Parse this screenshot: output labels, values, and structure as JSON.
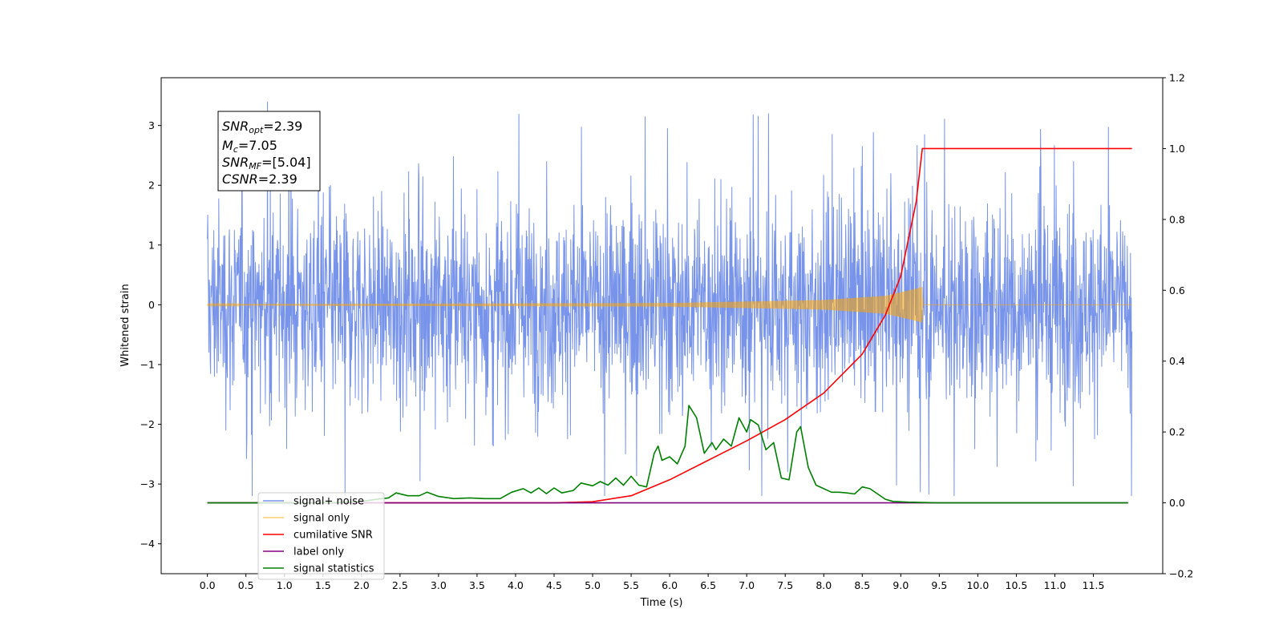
{
  "chart_data": {
    "type": "line",
    "xlabel": "Time (s)",
    "ylabel_left": "Whitened strain",
    "ylabel_right": "",
    "xlim": [
      -0.6,
      12.4
    ],
    "ylim_left": [
      -4.5,
      3.8
    ],
    "ylim_right": [
      -0.2,
      1.2
    ],
    "x_ticks": [
      "0.0",
      "0.5",
      "1.0",
      "1.5",
      "2.0",
      "2.5",
      "3.0",
      "3.5",
      "4.0",
      "4.5",
      "5.0",
      "5.5",
      "6.0",
      "6.5",
      "7.0",
      "7.5",
      "8.0",
      "8.5",
      "9.0",
      "9.5",
      "10.0",
      "10.5",
      "11.0",
      "11.5"
    ],
    "y_ticks_left": [
      "−4",
      "−3",
      "−2",
      "−1",
      "0",
      "1",
      "2",
      "3"
    ],
    "y_ticks_right": [
      "−0.2",
      "0.0",
      "0.2",
      "0.4",
      "0.6",
      "0.8",
      "1.0",
      "1.2"
    ],
    "grid": false,
    "legend_position": "lower-left",
    "info_box": {
      "lines": [
        {
          "main": "SNR",
          "sub": "opt",
          "rest": "=2.39"
        },
        {
          "main": "M",
          "sub": "c",
          "rest": "=7.05"
        },
        {
          "main": "SNR",
          "sub": "MF",
          "rest": "=[5.04]"
        },
        {
          "main": "CSNR",
          "sub": "",
          "rest": "=2.39"
        }
      ]
    },
    "series": [
      {
        "name": "signal+ noise",
        "axis": "left",
        "color": "#4a6fe3",
        "kind": "noise",
        "x_range": [
          0.0,
          12.0
        ],
        "envelope_typical": [
          -1.8,
          1.8
        ],
        "envelope_peaks": [
          -3.2,
          3.45
        ]
      },
      {
        "name": "signal only",
        "axis": "left",
        "color": "#ffa500",
        "kind": "chirp",
        "x_range": [
          0.0,
          12.0
        ],
        "merger_time": 9.28,
        "amplitude_points": [
          [
            0.0,
            0.01
          ],
          [
            6.0,
            0.03
          ],
          [
            8.0,
            0.08
          ],
          [
            8.8,
            0.15
          ],
          [
            9.2,
            0.27
          ],
          [
            9.28,
            0.3
          ],
          [
            9.29,
            0.0
          ]
        ]
      },
      {
        "name": "cumilative SNR",
        "axis": "right",
        "color": "#ff0000",
        "points": [
          [
            0.0,
            0.0
          ],
          [
            4.5,
            0.0
          ],
          [
            5.0,
            0.003
          ],
          [
            5.5,
            0.02
          ],
          [
            6.0,
            0.065
          ],
          [
            6.5,
            0.12
          ],
          [
            7.0,
            0.175
          ],
          [
            7.5,
            0.235
          ],
          [
            8.0,
            0.31
          ],
          [
            8.5,
            0.42
          ],
          [
            8.8,
            0.53
          ],
          [
            9.0,
            0.64
          ],
          [
            9.2,
            0.85
          ],
          [
            9.28,
            1.0
          ],
          [
            12.0,
            1.0
          ]
        ]
      },
      {
        "name": "label only",
        "axis": "right",
        "color": "#800080",
        "points": [
          [
            0.0,
            0.0
          ],
          [
            11.95,
            0.0
          ]
        ]
      },
      {
        "name": "signal statistics",
        "axis": "right",
        "color": "#008000",
        "points": [
          [
            0.0,
            0.0
          ],
          [
            1.2,
            0.0
          ],
          [
            1.6,
            0.0
          ],
          [
            1.8,
            0.002
          ],
          [
            2.0,
            0.004
          ],
          [
            2.2,
            0.01
          ],
          [
            2.35,
            0.014
          ],
          [
            2.45,
            0.028
          ],
          [
            2.6,
            0.02
          ],
          [
            2.75,
            0.02
          ],
          [
            2.85,
            0.03
          ],
          [
            3.0,
            0.018
          ],
          [
            3.2,
            0.012
          ],
          [
            3.4,
            0.014
          ],
          [
            3.6,
            0.012
          ],
          [
            3.8,
            0.012
          ],
          [
            3.95,
            0.03
          ],
          [
            4.1,
            0.04
          ],
          [
            4.2,
            0.028
          ],
          [
            4.3,
            0.042
          ],
          [
            4.4,
            0.026
          ],
          [
            4.5,
            0.042
          ],
          [
            4.6,
            0.028
          ],
          [
            4.75,
            0.035
          ],
          [
            4.85,
            0.056
          ],
          [
            5.0,
            0.048
          ],
          [
            5.1,
            0.06
          ],
          [
            5.2,
            0.05
          ],
          [
            5.3,
            0.07
          ],
          [
            5.4,
            0.05
          ],
          [
            5.5,
            0.075
          ],
          [
            5.6,
            0.05
          ],
          [
            5.7,
            0.045
          ],
          [
            5.8,
            0.14
          ],
          [
            5.85,
            0.16
          ],
          [
            5.9,
            0.12
          ],
          [
            6.0,
            0.13
          ],
          [
            6.1,
            0.11
          ],
          [
            6.2,
            0.16
          ],
          [
            6.25,
            0.275
          ],
          [
            6.35,
            0.24
          ],
          [
            6.45,
            0.14
          ],
          [
            6.55,
            0.17
          ],
          [
            6.6,
            0.15
          ],
          [
            6.7,
            0.18
          ],
          [
            6.8,
            0.16
          ],
          [
            6.9,
            0.24
          ],
          [
            7.0,
            0.2
          ],
          [
            7.05,
            0.235
          ],
          [
            7.15,
            0.22
          ],
          [
            7.25,
            0.15
          ],
          [
            7.35,
            0.17
          ],
          [
            7.45,
            0.07
          ],
          [
            7.55,
            0.065
          ],
          [
            7.65,
            0.2
          ],
          [
            7.7,
            0.215
          ],
          [
            7.8,
            0.1
          ],
          [
            7.9,
            0.05
          ],
          [
            8.0,
            0.04
          ],
          [
            8.1,
            0.03
          ],
          [
            8.2,
            0.03
          ],
          [
            8.3,
            0.028
          ],
          [
            8.4,
            0.025
          ],
          [
            8.5,
            0.045
          ],
          [
            8.6,
            0.04
          ],
          [
            8.7,
            0.025
          ],
          [
            8.8,
            0.01
          ],
          [
            8.9,
            0.004
          ],
          [
            9.1,
            0.002
          ],
          [
            9.5,
            0.0
          ],
          [
            11.95,
            0.0
          ]
        ]
      }
    ]
  }
}
